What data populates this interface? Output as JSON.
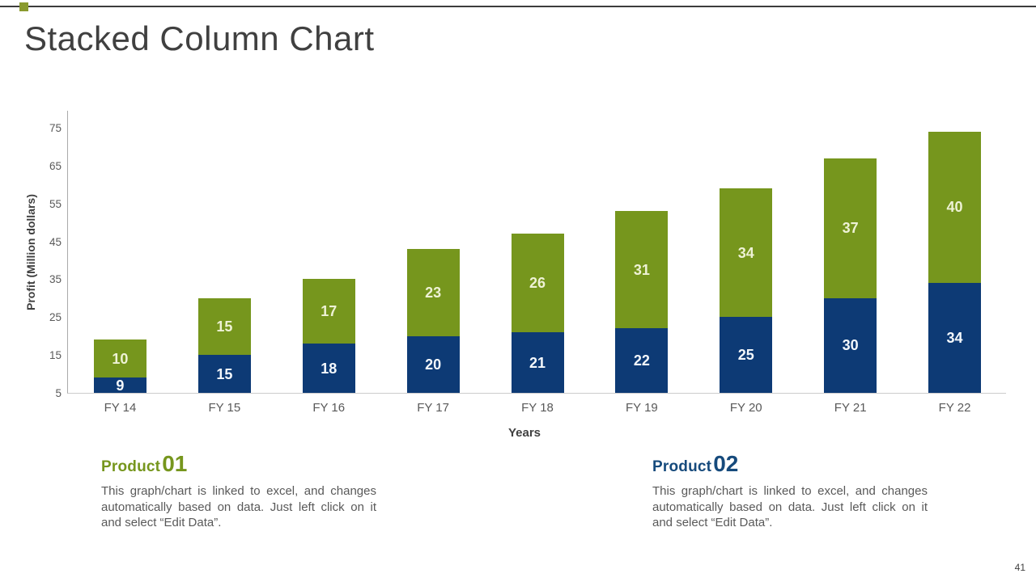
{
  "slide": {
    "title": "Stacked Column Chart",
    "page_number": "41",
    "accent_green": "#76961d",
    "accent_navy": "#0d3a75",
    "marker_color": "#8a9a2e"
  },
  "chart_data": {
    "type": "bar",
    "stacked": true,
    "title": "",
    "xlabel": "Years",
    "ylabel": "Profit  (Million dollars)",
    "categories": [
      "FY 14",
      "FY 15",
      "FY 16",
      "FY 17",
      "FY 18",
      "FY 19",
      "FY 20",
      "FY 21",
      "FY 22"
    ],
    "series": [
      {
        "name": "Product 02",
        "color": "#0d3a75",
        "label_color": "#f4f8fc",
        "values": [
          9,
          15,
          18,
          20,
          21,
          22,
          25,
          30,
          34
        ]
      },
      {
        "name": "Product 01",
        "color": "#76961d",
        "label_color": "#eef2d5",
        "values": [
          10,
          15,
          17,
          23,
          26,
          31,
          34,
          37,
          40
        ]
      }
    ],
    "totals": [
      19,
      30,
      35,
      43,
      47,
      53,
      59,
      67,
      74
    ],
    "ylim": [
      5,
      75
    ],
    "yticks": [
      5,
      15,
      25,
      35,
      45,
      55,
      65,
      75
    ],
    "grid": false,
    "legend_position": "none"
  },
  "products": [
    {
      "label": "Product",
      "number": "01",
      "color": "#76961d",
      "description": "This graph/chart is linked to excel, and changes automatically based on data. Just left click on it and select “Edit Data”."
    },
    {
      "label": "Product",
      "number": "02",
      "color": "#164a7c",
      "description": "This graph/chart is linked to excel, and changes automatically based on data. Just left click on it and select “Edit Data”."
    }
  ]
}
